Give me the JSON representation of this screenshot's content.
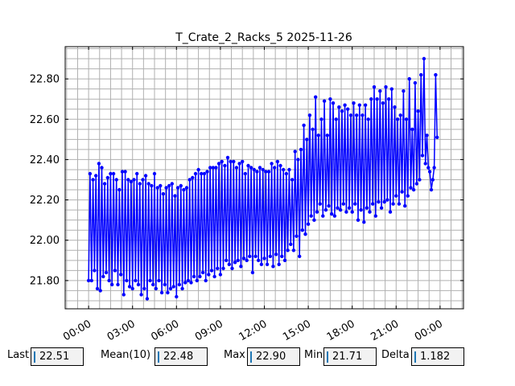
{
  "chart_data": {
    "type": "line",
    "title": "T_Crate_2_Racks_5 2025-11-26",
    "xlabel": "",
    "ylabel": "",
    "x_tick_labels": [
      "00:00",
      "03:00",
      "06:00",
      "09:00",
      "12:00",
      "15:00",
      "18:00",
      "21:00",
      "00:00"
    ],
    "x_tick_hours": [
      0,
      3,
      6,
      9,
      12,
      15,
      18,
      21,
      24
    ],
    "xlim_hours": [
      -1.6,
      25.6
    ],
    "y_ticks": [
      "21.80",
      "22.00",
      "22.20",
      "22.40",
      "22.60",
      "22.80"
    ],
    "y_tick_values": [
      21.8,
      22.0,
      22.2,
      22.4,
      22.6,
      22.8
    ],
    "ylim": [
      21.66,
      22.96
    ],
    "grid": true,
    "line_color": "#0000ff",
    "series": [
      {
        "note": "samples as [hour, temperature]; oscillating readings",
        "points": [
          [
            0.0,
            21.8
          ],
          [
            0.1,
            22.33
          ],
          [
            0.2,
            21.8
          ],
          [
            0.3,
            22.3
          ],
          [
            0.4,
            21.85
          ],
          [
            0.5,
            22.32
          ],
          [
            0.6,
            21.76
          ],
          [
            0.7,
            22.38
          ],
          [
            0.8,
            21.75
          ],
          [
            0.9,
            22.36
          ],
          [
            1.0,
            21.82
          ],
          [
            1.1,
            22.28
          ],
          [
            1.2,
            21.84
          ],
          [
            1.3,
            22.31
          ],
          [
            1.4,
            21.8
          ],
          [
            1.5,
            22.33
          ],
          [
            1.6,
            21.78
          ],
          [
            1.7,
            22.33
          ],
          [
            1.8,
            21.85
          ],
          [
            1.9,
            22.3
          ],
          [
            2.0,
            21.78
          ],
          [
            2.1,
            22.25
          ],
          [
            2.2,
            21.83
          ],
          [
            2.3,
            22.34
          ],
          [
            2.4,
            21.73
          ],
          [
            2.5,
            22.34
          ],
          [
            2.6,
            21.8
          ],
          [
            2.7,
            22.3
          ],
          [
            2.8,
            21.77
          ],
          [
            2.9,
            22.29
          ],
          [
            3.0,
            21.76
          ],
          [
            3.1,
            22.3
          ],
          [
            3.2,
            21.8
          ],
          [
            3.3,
            22.33
          ],
          [
            3.4,
            21.78
          ],
          [
            3.5,
            22.28
          ],
          [
            3.6,
            21.73
          ],
          [
            3.7,
            22.3
          ],
          [
            3.8,
            21.76
          ],
          [
            3.9,
            22.32
          ],
          [
            4.0,
            21.71
          ],
          [
            4.1,
            22.28
          ],
          [
            4.2,
            21.8
          ],
          [
            4.3,
            22.27
          ],
          [
            4.4,
            21.78
          ],
          [
            4.5,
            22.33
          ],
          [
            4.6,
            21.76
          ],
          [
            4.7,
            22.26
          ],
          [
            4.8,
            21.8
          ],
          [
            4.9,
            22.27
          ],
          [
            5.0,
            21.74
          ],
          [
            5.1,
            22.23
          ],
          [
            5.2,
            21.78
          ],
          [
            5.3,
            22.26
          ],
          [
            5.4,
            21.74
          ],
          [
            5.5,
            22.27
          ],
          [
            5.6,
            21.76
          ],
          [
            5.7,
            22.28
          ],
          [
            5.8,
            21.77
          ],
          [
            5.9,
            22.22
          ],
          [
            6.0,
            21.72
          ],
          [
            6.1,
            22.26
          ],
          [
            6.2,
            21.78
          ],
          [
            6.3,
            22.27
          ],
          [
            6.4,
            21.76
          ],
          [
            6.5,
            22.25
          ],
          [
            6.6,
            21.79
          ],
          [
            6.7,
            22.26
          ],
          [
            6.8,
            21.8
          ],
          [
            6.9,
            22.3
          ],
          [
            7.0,
            21.79
          ],
          [
            7.1,
            22.31
          ],
          [
            7.2,
            21.82
          ],
          [
            7.3,
            22.33
          ],
          [
            7.4,
            21.8
          ],
          [
            7.5,
            22.35
          ],
          [
            7.6,
            21.82
          ],
          [
            7.7,
            22.33
          ],
          [
            7.8,
            21.84
          ],
          [
            7.9,
            22.33
          ],
          [
            8.0,
            21.8
          ],
          [
            8.1,
            22.34
          ],
          [
            8.2,
            21.83
          ],
          [
            8.3,
            22.36
          ],
          [
            8.4,
            21.85
          ],
          [
            8.5,
            22.36
          ],
          [
            8.6,
            21.82
          ],
          [
            8.7,
            22.36
          ],
          [
            8.8,
            21.86
          ],
          [
            8.9,
            22.38
          ],
          [
            9.0,
            21.83
          ],
          [
            9.1,
            22.39
          ],
          [
            9.2,
            21.86
          ],
          [
            9.3,
            22.37
          ],
          [
            9.4,
            21.9
          ],
          [
            9.5,
            22.41
          ],
          [
            9.6,
            21.88
          ],
          [
            9.7,
            22.39
          ],
          [
            9.8,
            21.86
          ],
          [
            9.9,
            22.39
          ],
          [
            10.0,
            21.89
          ],
          [
            10.1,
            22.36
          ],
          [
            10.2,
            21.9
          ],
          [
            10.3,
            22.38
          ],
          [
            10.4,
            21.87
          ],
          [
            10.5,
            22.39
          ],
          [
            10.6,
            21.91
          ],
          [
            10.7,
            22.33
          ],
          [
            10.8,
            21.9
          ],
          [
            10.9,
            22.37
          ],
          [
            11.0,
            21.92
          ],
          [
            11.1,
            22.36
          ],
          [
            11.2,
            21.84
          ],
          [
            11.3,
            22.35
          ],
          [
            11.4,
            21.92
          ],
          [
            11.5,
            22.34
          ],
          [
            11.6,
            21.9
          ],
          [
            11.7,
            22.36
          ],
          [
            11.8,
            21.88
          ],
          [
            11.9,
            22.35
          ],
          [
            12.0,
            21.91
          ],
          [
            12.1,
            22.34
          ],
          [
            12.2,
            21.88
          ],
          [
            12.3,
            22.34
          ],
          [
            12.4,
            21.92
          ],
          [
            12.5,
            22.38
          ],
          [
            12.6,
            21.87
          ],
          [
            12.7,
            22.36
          ],
          [
            12.8,
            21.93
          ],
          [
            12.9,
            22.39
          ],
          [
            13.0,
            21.88
          ],
          [
            13.1,
            22.37
          ],
          [
            13.2,
            21.92
          ],
          [
            13.3,
            22.35
          ],
          [
            13.4,
            21.9
          ],
          [
            13.5,
            22.33
          ],
          [
            13.6,
            21.95
          ],
          [
            13.7,
            22.35
          ],
          [
            13.8,
            21.98
          ],
          [
            13.9,
            22.3
          ],
          [
            14.0,
            21.95
          ],
          [
            14.1,
            22.44
          ],
          [
            14.2,
            22.02
          ],
          [
            14.3,
            22.4
          ],
          [
            14.4,
            21.92
          ],
          [
            14.5,
            22.45
          ],
          [
            14.6,
            22.05
          ],
          [
            14.7,
            22.57
          ],
          [
            14.8,
            22.03
          ],
          [
            14.9,
            22.5
          ],
          [
            15.0,
            22.08
          ],
          [
            15.1,
            22.62
          ],
          [
            15.2,
            22.12
          ],
          [
            15.3,
            22.55
          ],
          [
            15.4,
            22.1
          ],
          [
            15.5,
            22.71
          ],
          [
            15.6,
            22.14
          ],
          [
            15.7,
            22.52
          ],
          [
            15.8,
            22.18
          ],
          [
            15.9,
            22.6
          ],
          [
            16.0,
            22.12
          ],
          [
            16.1,
            22.69
          ],
          [
            16.2,
            22.15
          ],
          [
            16.3,
            22.52
          ],
          [
            16.4,
            22.17
          ],
          [
            16.5,
            22.7
          ],
          [
            16.6,
            22.13
          ],
          [
            16.7,
            22.68
          ],
          [
            16.8,
            22.12
          ],
          [
            16.9,
            22.6
          ],
          [
            17.0,
            22.16
          ],
          [
            17.1,
            22.66
          ],
          [
            17.2,
            22.15
          ],
          [
            17.3,
            22.64
          ],
          [
            17.4,
            22.18
          ],
          [
            17.5,
            22.67
          ],
          [
            17.6,
            22.14
          ],
          [
            17.7,
            22.65
          ],
          [
            17.8,
            22.16
          ],
          [
            17.9,
            22.62
          ],
          [
            18.0,
            22.14
          ],
          [
            18.1,
            22.68
          ],
          [
            18.2,
            22.18
          ],
          [
            18.3,
            22.62
          ],
          [
            18.4,
            22.1
          ],
          [
            18.5,
            22.67
          ],
          [
            18.6,
            22.15
          ],
          [
            18.7,
            22.62
          ],
          [
            18.8,
            22.09
          ],
          [
            18.9,
            22.67
          ],
          [
            19.0,
            22.16
          ],
          [
            19.1,
            22.6
          ],
          [
            19.2,
            22.14
          ],
          [
            19.3,
            22.7
          ],
          [
            19.4,
            22.18
          ],
          [
            19.5,
            22.76
          ],
          [
            19.6,
            22.12
          ],
          [
            19.7,
            22.7
          ],
          [
            19.8,
            22.19
          ],
          [
            19.9,
            22.74
          ],
          [
            20.0,
            22.16
          ],
          [
            20.1,
            22.68
          ],
          [
            20.2,
            22.19
          ],
          [
            20.3,
            22.76
          ],
          [
            20.4,
            22.2
          ],
          [
            20.5,
            22.7
          ],
          [
            20.6,
            22.14
          ],
          [
            20.7,
            22.75
          ],
          [
            20.8,
            22.18
          ],
          [
            20.9,
            22.66
          ],
          [
            21.0,
            22.22
          ],
          [
            21.1,
            22.6
          ],
          [
            21.2,
            22.18
          ],
          [
            21.3,
            22.62
          ],
          [
            21.4,
            22.24
          ],
          [
            21.5,
            22.74
          ],
          [
            21.6,
            22.17
          ],
          [
            21.7,
            22.6
          ],
          [
            21.8,
            22.22
          ],
          [
            21.9,
            22.8
          ],
          [
            22.0,
            22.26
          ],
          [
            22.1,
            22.55
          ],
          [
            22.2,
            22.25
          ],
          [
            22.3,
            22.78
          ],
          [
            22.4,
            22.28
          ],
          [
            22.5,
            22.64
          ],
          [
            22.6,
            22.3
          ],
          [
            22.7,
            22.82
          ],
          [
            22.8,
            22.42
          ],
          [
            22.9,
            22.9
          ],
          [
            23.0,
            22.38
          ],
          [
            23.1,
            22.52
          ],
          [
            23.2,
            22.36
          ],
          [
            23.3,
            22.34
          ],
          [
            23.4,
            22.25
          ],
          [
            23.5,
            22.3
          ],
          [
            23.6,
            22.36
          ],
          [
            23.7,
            22.82
          ],
          [
            23.8,
            22.51
          ]
        ]
      }
    ]
  },
  "stats": {
    "last_label": "Last",
    "last_value": "22.51",
    "mean_label": "Mean(10)",
    "mean_value": "22.48",
    "max_label": "Max",
    "max_value": "22.90",
    "min_label": "Min",
    "min_value": "21.71",
    "delta_label": "Delta",
    "delta_value": "1.182"
  }
}
